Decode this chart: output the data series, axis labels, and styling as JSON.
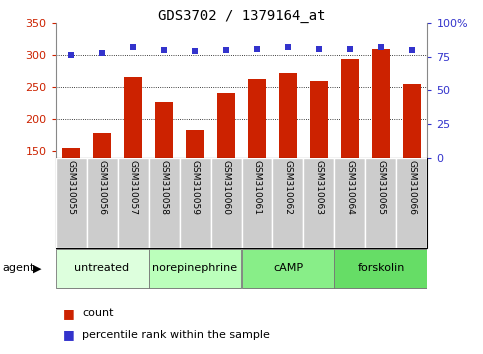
{
  "title": "GDS3702 / 1379164_at",
  "samples": [
    "GSM310055",
    "GSM310056",
    "GSM310057",
    "GSM310058",
    "GSM310059",
    "GSM310060",
    "GSM310061",
    "GSM310062",
    "GSM310063",
    "GSM310064",
    "GSM310065",
    "GSM310066"
  ],
  "bar_values": [
    155,
    178,
    265,
    226,
    183,
    241,
    263,
    272,
    259,
    294,
    309,
    255
  ],
  "scatter_values": [
    76,
    78,
    82,
    80,
    79,
    80,
    81,
    82,
    81,
    81,
    82,
    80
  ],
  "bar_color": "#cc2200",
  "scatter_color": "#3333cc",
  "ylim_left": [
    140,
    350
  ],
  "ylim_right": [
    0,
    100
  ],
  "yticks_left": [
    150,
    200,
    250,
    300,
    350
  ],
  "yticks_right": [
    0,
    25,
    50,
    75,
    100
  ],
  "yticklabels_right": [
    "0",
    "25",
    "50",
    "75",
    "100%"
  ],
  "grid_lines": [
    200,
    250,
    300
  ],
  "agent_groups": [
    {
      "label": "untreated",
      "start": 0,
      "end": 3,
      "color": "#ddffdd"
    },
    {
      "label": "norepinephrine",
      "start": 3,
      "end": 6,
      "color": "#bbffbb"
    },
    {
      "label": "cAMP",
      "start": 6,
      "end": 9,
      "color": "#88ee88"
    },
    {
      "label": "forskolin",
      "start": 9,
      "end": 12,
      "color": "#66dd66"
    }
  ],
  "sample_box_color": "#cccccc",
  "legend_count_color": "#cc2200",
  "legend_scatter_color": "#3333cc",
  "left_tick_color": "#cc2200",
  "right_tick_color": "#3333cc"
}
